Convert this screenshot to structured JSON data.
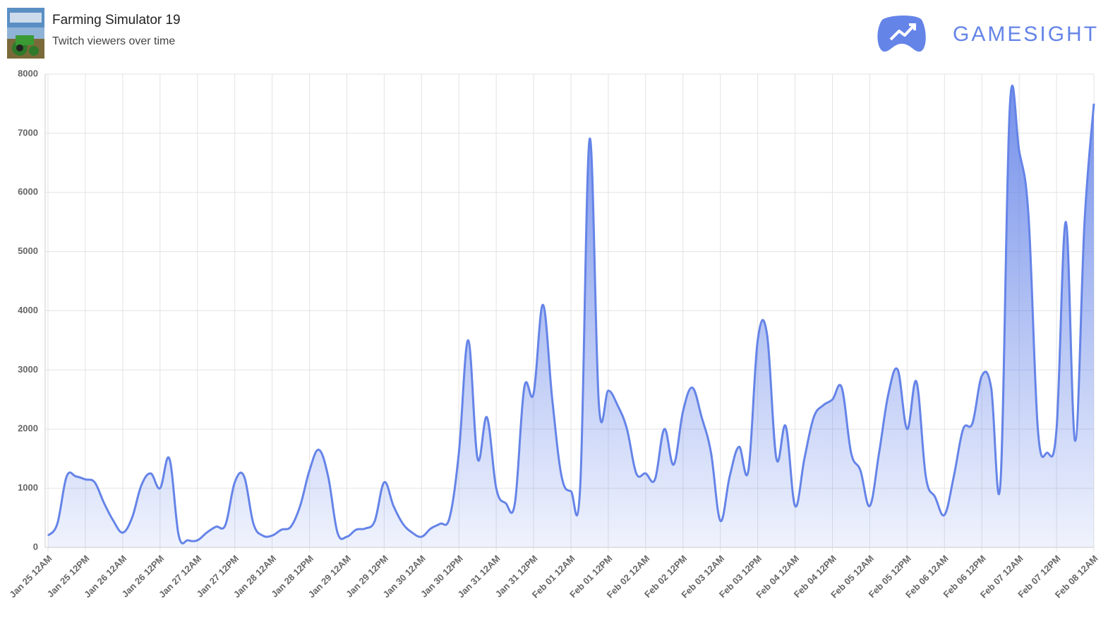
{
  "chart_data": {
    "type": "area",
    "title": "Farming Simulator 19",
    "subtitle": "Twitch viewers over time",
    "brand": "GAMESIGHT",
    "color": "#6584e8",
    "grid": true,
    "ylim": [
      0,
      8000
    ],
    "yticks": [
      0,
      1000,
      2000,
      3000,
      4000,
      5000,
      6000,
      7000,
      8000
    ],
    "categories": [
      "Jan 25 12AM",
      null,
      null,
      null,
      "Jan 25 12PM",
      null,
      null,
      null,
      "Jan 26 12AM",
      null,
      null,
      null,
      "Jan 26 12PM",
      null,
      null,
      null,
      "Jan 27 12AM",
      null,
      null,
      null,
      "Jan 27 12PM",
      null,
      null,
      null,
      "Jan 28 12AM",
      null,
      null,
      null,
      "Jan 28 12PM",
      null,
      null,
      null,
      "Jan 29 12AM",
      null,
      null,
      null,
      "Jan 29 12PM",
      null,
      null,
      null,
      "Jan 30 12AM",
      null,
      null,
      null,
      "Jan 30 12PM",
      null,
      null,
      null,
      "Jan 31 12AM",
      null,
      null,
      null,
      "Jan 31 12PM",
      null,
      null,
      null,
      "Feb 01 12AM",
      null,
      null,
      null,
      "Feb 01 12PM",
      null,
      null,
      null,
      "Feb 02 12AM",
      null,
      null,
      null,
      "Feb 02 12PM",
      null,
      null,
      null,
      "Feb 03 12AM",
      null,
      null,
      null,
      "Feb 03 12PM",
      null,
      null,
      null,
      "Feb 04 12AM",
      null,
      null,
      null,
      "Feb 04 12PM",
      null,
      null,
      null,
      "Feb 05 12AM",
      null,
      null,
      null,
      "Feb 05 12PM",
      null,
      null,
      null,
      "Feb 06 12AM",
      null,
      null,
      null,
      "Feb 06 12PM",
      null,
      null,
      null,
      "Feb 07 12AM",
      null,
      null,
      null,
      "Feb 07 12PM",
      null,
      null,
      null,
      "Feb 08 12AM"
    ],
    "values": [
      200,
      400,
      1200,
      1200,
      1150,
      1100,
      750,
      450,
      250,
      500,
      1050,
      1250,
      1000,
      1500,
      200,
      120,
      120,
      250,
      350,
      380,
      1100,
      1200,
      400,
      200,
      200,
      300,
      350,
      700,
      1300,
      1650,
      1200,
      250,
      180,
      300,
      320,
      450,
      1100,
      700,
      400,
      250,
      180,
      320,
      400,
      500,
      1600,
      3500,
      1500,
      2200,
      1000,
      750,
      750,
      2700,
      2600,
      4100,
      2500,
      1200,
      950,
      1050,
      6900,
      2400,
      2650,
      2400,
      2000,
      1250,
      1250,
      1150,
      2000,
      1400,
      2300,
      2700,
      2200,
      1600,
      450,
      1200,
      1700,
      1300,
      3500,
      3600,
      1500,
      2050,
      700,
      1500,
      2200,
      2400,
      2500,
      2700,
      1600,
      1300,
      700,
      1600,
      2600,
      3000,
      2000,
      2800,
      1200,
      850,
      550,
      1200,
      2000,
      2100,
      2900,
      2700,
      1100,
      7450,
      6700,
      5600,
      2000,
      1600,
      2000,
      5500,
      1800,
      5500,
      7500
    ]
  }
}
